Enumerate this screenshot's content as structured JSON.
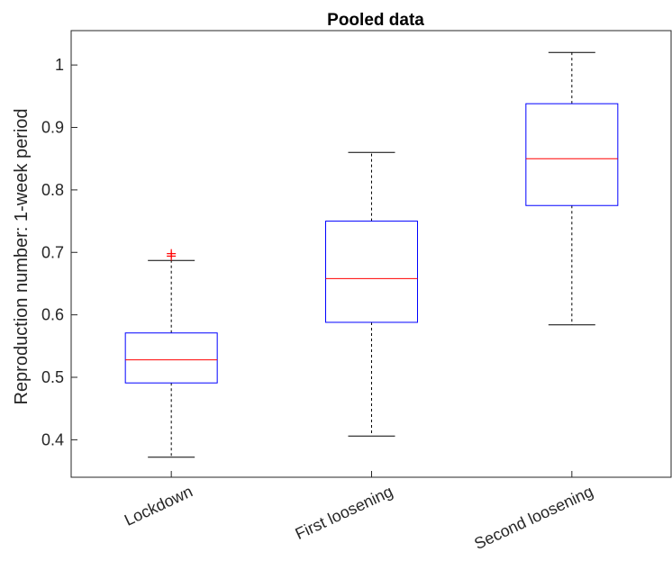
{
  "chart_data": {
    "type": "box",
    "title": "Pooled data",
    "xlabel": "",
    "ylabel": "Reproduction number: 1-week period",
    "ylim": [
      0.34,
      1.055
    ],
    "yticks": [
      0.4,
      0.5,
      0.6,
      0.7,
      0.8,
      0.9,
      1
    ],
    "ytick_labels": [
      "0.4",
      "0.5",
      "0.6",
      "0.7",
      "0.8",
      "0.9",
      "1"
    ],
    "grid": false,
    "categories": [
      "Lockdown",
      "First loosening",
      "Second loosening"
    ],
    "boxes": [
      {
        "category": "Lockdown",
        "whisker_low": 0.372,
        "q1": 0.491,
        "median": 0.528,
        "q3": 0.571,
        "whisker_high": 0.687,
        "outliers": [
          0.694,
          0.698
        ]
      },
      {
        "category": "First loosening",
        "whisker_low": 0.406,
        "q1": 0.588,
        "median": 0.658,
        "q3": 0.75,
        "whisker_high": 0.86,
        "outliers": []
      },
      {
        "category": "Second loosening",
        "whisker_low": 0.584,
        "q1": 0.775,
        "median": 0.85,
        "q3": 0.938,
        "whisker_high": 1.02,
        "outliers": []
      }
    ],
    "colors": {
      "box": "#0000ff",
      "median": "#ff0000",
      "whisker": "#000000",
      "outlier": "#ff0000",
      "axis": "#262626"
    }
  }
}
